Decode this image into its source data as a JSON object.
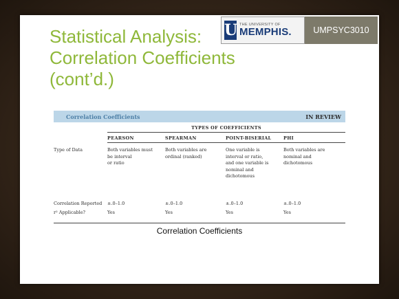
{
  "brand": {
    "logo_small": "THE UNIVERSITY OF",
    "logo_big": "MEMPHIS.",
    "logo_letter": "U",
    "course": "UMPSYC3010"
  },
  "slide": {
    "title_lines": [
      "Statistical Analysis:",
      "Correlation Coefficients",
      "(cont’d.)"
    ],
    "caption": "Correlation Coefficients"
  },
  "table": {
    "header_left": "Correlation Coefficients",
    "header_right": "IN REVIEW",
    "group_label": "TYPES OF COEFFICIENTS",
    "columns": [
      "PEARSON",
      "SPEARMAN",
      "POINT-BISERIAL",
      "PHI"
    ],
    "rows": [
      {
        "label": "Type of Data",
        "cells": [
          "Both variables must\nbe interval\nor ratio",
          "Both variables are\nordinal (ranked)",
          "One variable is\ninterval or ratio,\nand one variable is\nnominal and\ndichotomous",
          "Both variables are\nnominal and\ndichotomous"
        ]
      },
      {
        "label": "Correlation Reported",
        "cells": [
          "±.0–1.0",
          "±.0–1.0",
          "±.0–1.0",
          "±.0–1.0"
        ]
      },
      {
        "label": "r² Applicable?",
        "cells": [
          "Yes",
          "Yes",
          "Yes",
          "Yes"
        ]
      }
    ]
  },
  "colors": {
    "title": "#8fb83a",
    "header_band": "#bcd6e8",
    "header_text": "#4d7fa6",
    "logo_blue": "#1a3c78",
    "course_band": "#7d7a6a"
  }
}
